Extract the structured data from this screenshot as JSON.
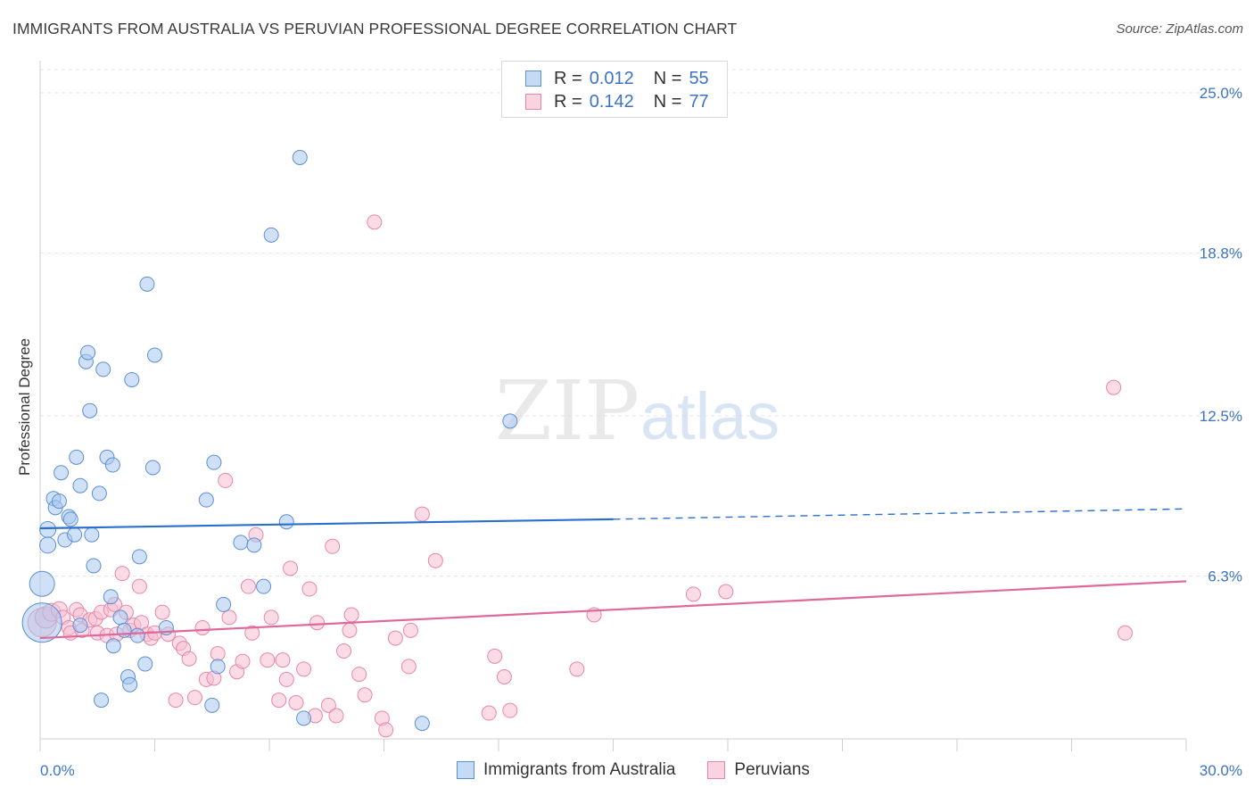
{
  "header": {
    "title": "IMMIGRANTS FROM AUSTRALIA VS PERUVIAN PROFESSIONAL DEGREE CORRELATION CHART",
    "source": "Source: ZipAtlas.com"
  },
  "legend_top": {
    "rows": [
      {
        "r_label": "R =",
        "r_value": "0.012",
        "n_label": "N =",
        "n_value": "55"
      },
      {
        "r_label": "R =",
        "r_value": "0.142",
        "n_label": "N =",
        "n_value": "77"
      }
    ]
  },
  "legend_bottom": {
    "items": [
      {
        "label": "Immigrants from Australia"
      },
      {
        "label": "Peruvians"
      }
    ]
  },
  "watermark": {
    "zip": "ZIP",
    "atlas": "atlas"
  },
  "colors": {
    "blue_fill": "#aac8f0",
    "blue_stroke": "#5b8fd4",
    "blue_line": "#2a6fcf",
    "pink_fill": "#f7bfd1",
    "pink_stroke": "#e886a8",
    "pink_line": "#e0689a",
    "tick_label": "#3b73c6",
    "grid": "#e4e4e4"
  },
  "chart_data": {
    "type": "scatter",
    "title": "IMMIGRANTS FROM AUSTRALIA VS PERUVIAN PROFESSIONAL DEGREE CORRELATION CHART",
    "xlabel": "",
    "ylabel": "Professional Degree",
    "xlim": [
      0,
      30
    ],
    "ylim": [
      0,
      25.9
    ],
    "x_tick_labels": [
      "0.0%",
      "30.0%"
    ],
    "y_ticks": [
      6.3,
      12.5,
      18.8,
      25.0
    ],
    "y_tick_labels": [
      "6.3%",
      "12.5%",
      "18.8%",
      "25.0%"
    ],
    "grid": true,
    "legend_placement": "top-center",
    "series": [
      {
        "name": "Immigrants from Australia",
        "r": 0.012,
        "n": 55,
        "trend": {
          "x0": 0,
          "y0": 8.15,
          "x1": 15.0,
          "y1": 8.5,
          "dashed_to_x": 30,
          "dashed_to_y": 8.9
        },
        "points": [
          [
            0.05,
            6.0,
            14
          ],
          [
            0.05,
            4.5,
            22
          ],
          [
            0.2,
            8.1,
            9
          ],
          [
            0.2,
            7.5,
            9
          ],
          [
            0.35,
            9.3,
            8
          ],
          [
            0.4,
            8.95,
            8
          ],
          [
            0.5,
            9.2,
            8
          ],
          [
            0.55,
            10.3,
            8
          ],
          [
            0.65,
            7.7,
            8
          ],
          [
            0.75,
            8.6,
            8
          ],
          [
            0.8,
            8.5,
            8
          ],
          [
            0.9,
            7.9,
            8
          ],
          [
            0.95,
            10.9,
            8
          ],
          [
            1.05,
            4.4,
            8
          ],
          [
            1.05,
            9.8,
            8
          ],
          [
            1.2,
            14.6,
            8
          ],
          [
            1.25,
            14.95,
            8
          ],
          [
            1.3,
            12.7,
            8
          ],
          [
            1.35,
            7.9,
            8
          ],
          [
            1.4,
            6.7,
            8
          ],
          [
            1.55,
            9.5,
            8
          ],
          [
            1.6,
            1.5,
            8
          ],
          [
            1.65,
            14.3,
            8
          ],
          [
            1.75,
            10.9,
            8
          ],
          [
            1.85,
            5.5,
            8
          ],
          [
            1.9,
            10.6,
            8
          ],
          [
            1.92,
            3.6,
            8
          ],
          [
            2.1,
            4.7,
            8
          ],
          [
            2.2,
            4.2,
            8
          ],
          [
            2.3,
            2.4,
            8
          ],
          [
            2.35,
            2.1,
            8
          ],
          [
            2.4,
            13.9,
            8
          ],
          [
            2.55,
            4.0,
            8
          ],
          [
            2.6,
            7.05,
            8
          ],
          [
            2.75,
            2.9,
            8
          ],
          [
            2.8,
            17.6,
            8
          ],
          [
            2.95,
            10.5,
            8
          ],
          [
            3.0,
            14.85,
            8
          ],
          [
            3.3,
            4.3,
            8
          ],
          [
            4.35,
            9.25,
            8
          ],
          [
            4.5,
            1.3,
            8
          ],
          [
            4.55,
            10.7,
            8
          ],
          [
            4.65,
            2.8,
            8
          ],
          [
            4.8,
            5.2,
            8
          ],
          [
            5.25,
            7.6,
            8
          ],
          [
            5.6,
            7.5,
            8
          ],
          [
            5.85,
            5.9,
            8
          ],
          [
            6.05,
            19.5,
            8
          ],
          [
            6.45,
            8.4,
            8
          ],
          [
            6.8,
            22.5,
            8
          ],
          [
            6.9,
            0.8,
            8
          ],
          [
            10.0,
            0.6,
            8
          ],
          [
            12.3,
            12.3,
            8
          ]
        ]
      },
      {
        "name": "Peruvians",
        "r": 0.142,
        "n": 77,
        "trend": {
          "x0": 0,
          "y0": 3.9,
          "x1": 30,
          "y1": 6.1
        },
        "points": [
          [
            0.05,
            4.5,
            16
          ],
          [
            0.15,
            4.7,
            12
          ],
          [
            0.3,
            4.9,
            10
          ],
          [
            0.5,
            5.0,
            9
          ],
          [
            0.6,
            4.7,
            8
          ],
          [
            0.75,
            4.3,
            8
          ],
          [
            0.8,
            4.1,
            8
          ],
          [
            0.95,
            5.0,
            8
          ],
          [
            1.05,
            4.8,
            8
          ],
          [
            1.1,
            4.2,
            8
          ],
          [
            1.3,
            4.6,
            8
          ],
          [
            1.45,
            4.65,
            8
          ],
          [
            1.5,
            4.1,
            8
          ],
          [
            1.6,
            4.9,
            8
          ],
          [
            1.75,
            4.0,
            8
          ],
          [
            1.85,
            5.0,
            8
          ],
          [
            1.95,
            5.2,
            8
          ],
          [
            2.0,
            4.05,
            8
          ],
          [
            2.15,
            6.4,
            8
          ],
          [
            2.25,
            4.9,
            8
          ],
          [
            2.35,
            4.2,
            8
          ],
          [
            2.45,
            4.4,
            8
          ],
          [
            2.6,
            5.9,
            8
          ],
          [
            2.65,
            4.5,
            8
          ],
          [
            2.8,
            4.05,
            8
          ],
          [
            2.9,
            3.9,
            8
          ],
          [
            3.0,
            4.1,
            8
          ],
          [
            3.2,
            4.9,
            8
          ],
          [
            3.35,
            4.05,
            8
          ],
          [
            3.55,
            1.5,
            8
          ],
          [
            3.65,
            3.7,
            8
          ],
          [
            3.75,
            3.5,
            8
          ],
          [
            3.9,
            3.1,
            8
          ],
          [
            4.05,
            1.6,
            8
          ],
          [
            4.25,
            4.3,
            8
          ],
          [
            4.35,
            2.3,
            8
          ],
          [
            4.55,
            2.35,
            8
          ],
          [
            4.65,
            3.3,
            8
          ],
          [
            4.85,
            10.0,
            8
          ],
          [
            4.95,
            4.7,
            8
          ],
          [
            5.15,
            2.6,
            8
          ],
          [
            5.3,
            3.0,
            8
          ],
          [
            5.45,
            5.9,
            8
          ],
          [
            5.55,
            4.1,
            8
          ],
          [
            5.65,
            7.9,
            8
          ],
          [
            5.95,
            3.05,
            8
          ],
          [
            6.05,
            4.7,
            8
          ],
          [
            6.25,
            1.5,
            8
          ],
          [
            6.35,
            3.05,
            8
          ],
          [
            6.45,
            2.3,
            8
          ],
          [
            6.55,
            6.6,
            8
          ],
          [
            6.7,
            1.4,
            8
          ],
          [
            6.9,
            2.7,
            8
          ],
          [
            7.05,
            5.8,
            8
          ],
          [
            7.2,
            0.9,
            8
          ],
          [
            7.25,
            4.5,
            8
          ],
          [
            7.55,
            1.3,
            8
          ],
          [
            7.65,
            7.45,
            8
          ],
          [
            7.75,
            0.9,
            8
          ],
          [
            7.95,
            3.4,
            8
          ],
          [
            8.1,
            4.2,
            8
          ],
          [
            8.15,
            4.8,
            8
          ],
          [
            8.35,
            2.5,
            8
          ],
          [
            8.5,
            1.7,
            8
          ],
          [
            8.75,
            20.0,
            8
          ],
          [
            8.95,
            0.8,
            8
          ],
          [
            9.05,
            0.35,
            8
          ],
          [
            9.3,
            3.9,
            8
          ],
          [
            9.65,
            2.8,
            8
          ],
          [
            9.7,
            4.2,
            8
          ],
          [
            10.0,
            8.7,
            8
          ],
          [
            10.35,
            6.9,
            8
          ],
          [
            11.75,
            1.0,
            8
          ],
          [
            11.9,
            3.2,
            8
          ],
          [
            12.15,
            2.4,
            8
          ],
          [
            12.3,
            1.1,
            8
          ],
          [
            14.05,
            2.7,
            8
          ],
          [
            14.5,
            4.8,
            8
          ],
          [
            17.1,
            5.6,
            8
          ],
          [
            17.95,
            5.7,
            8
          ],
          [
            28.1,
            13.6,
            8
          ],
          [
            28.4,
            4.1,
            8
          ]
        ]
      }
    ]
  }
}
